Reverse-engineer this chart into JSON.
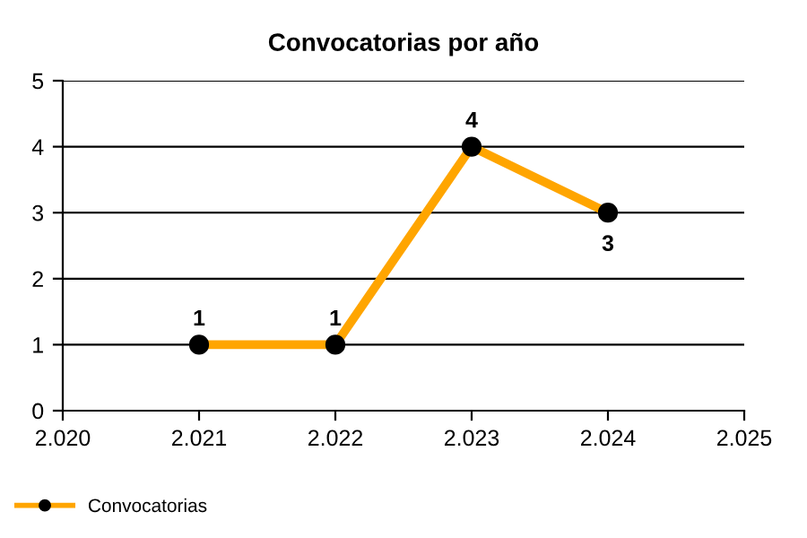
{
  "chart_data": {
    "type": "line",
    "title": "Convocatorias por año",
    "x": [
      2021,
      2022,
      2023,
      2024
    ],
    "series": [
      {
        "name": "Convocatorias",
        "color": "#ffa500",
        "values": [
          1,
          1,
          4,
          3
        ]
      }
    ],
    "xlim": [
      2020,
      2025
    ],
    "xticks": [
      {
        "value": 2020,
        "label": "2.020"
      },
      {
        "value": 2021,
        "label": "2.021"
      },
      {
        "value": 2022,
        "label": "2.022"
      },
      {
        "value": 2023,
        "label": "2.023"
      },
      {
        "value": 2024,
        "label": "2.024"
      },
      {
        "value": 2025,
        "label": "2.025"
      }
    ],
    "ylim": [
      0,
      5
    ],
    "yticks": [
      0,
      1,
      2,
      3,
      4,
      5
    ],
    "grid": "y",
    "legend": "bottom left",
    "marker": "circle",
    "line_style": "solid",
    "data_labels": true
  }
}
